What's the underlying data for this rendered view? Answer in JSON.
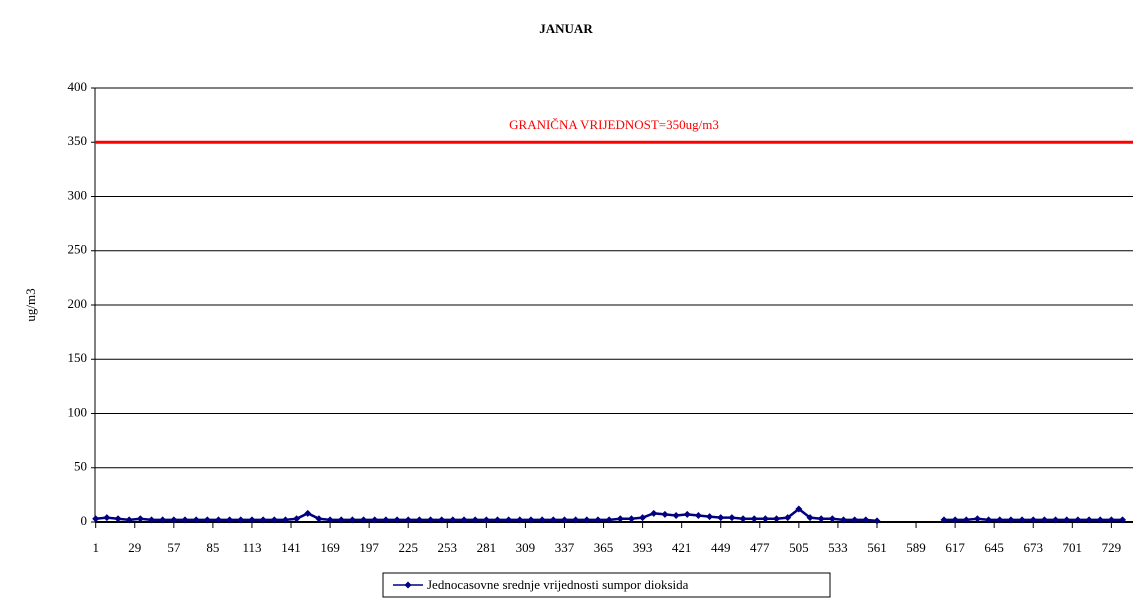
{
  "chart_data": {
    "type": "line",
    "title": "JANUAR",
    "y_label": "ug/m3",
    "xlim": [
      0.5,
      744.5
    ],
    "xticks": [
      1,
      29,
      57,
      85,
      113,
      141,
      169,
      197,
      225,
      253,
      281,
      309,
      337,
      365,
      393,
      421,
      449,
      477,
      505,
      533,
      561,
      589,
      617,
      645,
      673,
      701,
      729
    ],
    "ylim": [
      0,
      400
    ],
    "yticks": [
      0,
      50,
      100,
      150,
      200,
      250,
      300,
      350,
      400
    ],
    "grid": true,
    "legend": "bottom",
    "x": [
      1,
      9,
      17,
      25,
      33,
      41,
      49,
      57,
      65,
      73,
      81,
      89,
      97,
      105,
      113,
      121,
      129,
      137,
      145,
      153,
      161,
      169,
      177,
      185,
      193,
      201,
      209,
      217,
      225,
      233,
      241,
      249,
      257,
      265,
      273,
      281,
      289,
      297,
      305,
      313,
      321,
      329,
      337,
      345,
      353,
      361,
      369,
      377,
      385,
      393,
      401,
      409,
      417,
      425,
      433,
      441,
      449,
      457,
      465,
      473,
      481,
      489,
      497,
      505,
      513,
      521,
      529,
      537,
      545,
      553,
      561,
      569,
      577,
      585,
      593,
      601,
      609,
      617,
      625,
      633,
      641,
      649,
      657,
      665,
      673,
      681,
      689,
      697,
      705,
      713,
      721,
      729,
      737
    ],
    "series": [
      {
        "name": "Jednocasovne srednje vrijednosti sumpor dioksida",
        "color": "#000080",
        "values": [
          3,
          4,
          3,
          2,
          3,
          2,
          2,
          2,
          2,
          2,
          2,
          2,
          2,
          2,
          2,
          2,
          2,
          2,
          3,
          8,
          3,
          2,
          2,
          2,
          2,
          2,
          2,
          2,
          2,
          2,
          2,
          2,
          2,
          2,
          2,
          2,
          2,
          2,
          2,
          2,
          2,
          2,
          2,
          2,
          2,
          2,
          2,
          3,
          3,
          4,
          8,
          7,
          6,
          7,
          6,
          5,
          4,
          4,
          3,
          3,
          3,
          3,
          4,
          12,
          4,
          3,
          3,
          2,
          2,
          2,
          1,
          null,
          null,
          null,
          null,
          null,
          2,
          2,
          2,
          3,
          2,
          2,
          2,
          2,
          2,
          2,
          2,
          2,
          2,
          2,
          2,
          2,
          2
        ]
      }
    ],
    "limit": {
      "value": 350,
      "label": "GRANIČNA VRIJEDNOST=350ug/m3",
      "color": "#ff0000"
    }
  }
}
